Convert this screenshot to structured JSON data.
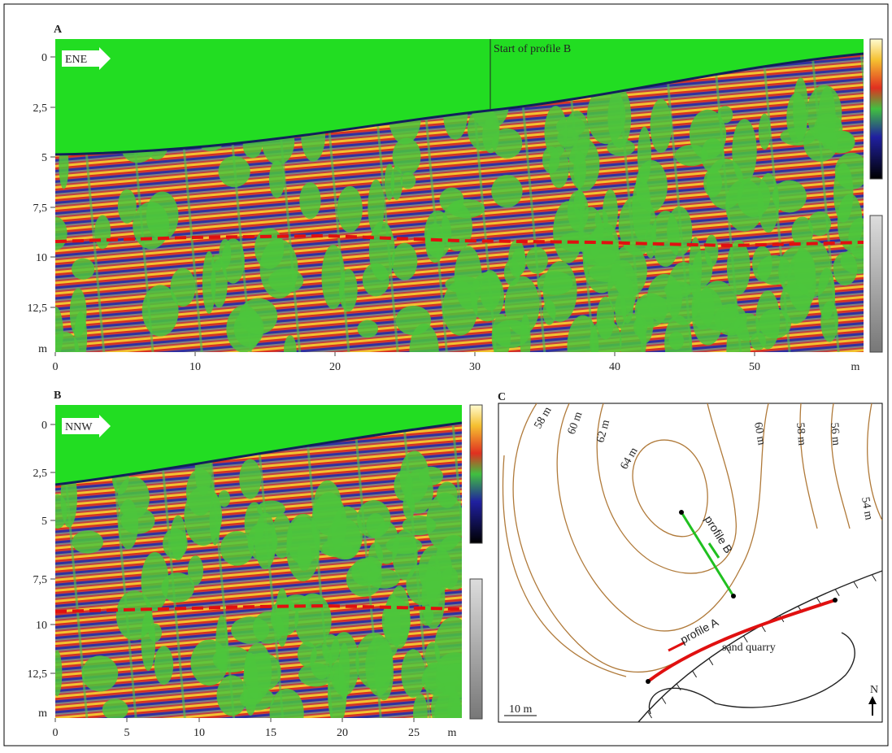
{
  "panels": [
    {
      "letter": "A",
      "direction": "ENE",
      "annotation": "Start of profile B",
      "yticks": [
        "0",
        "2,5",
        "5",
        "7,5",
        "10",
        "12,5",
        "m"
      ],
      "xticks": [
        "0",
        "10",
        "20",
        "30",
        "40",
        "50",
        "m"
      ]
    },
    {
      "letter": "B",
      "direction": "NNW",
      "yticks": [
        "0",
        "2,5",
        "5",
        "7,5",
        "10",
        "12,5",
        "m"
      ],
      "xticks": [
        "0",
        "5",
        "10",
        "15",
        "20",
        "25",
        "m"
      ]
    }
  ],
  "map": {
    "letter": "C",
    "contours": [
      "58 m",
      "60 m",
      "62 m",
      "64 m",
      "60 m",
      "58 m",
      "56 m",
      "54 m"
    ],
    "profile_a": "profile A",
    "profile_b": "profile B",
    "quarry": "sand quarry",
    "scale": "10 m",
    "north": "N"
  }
}
